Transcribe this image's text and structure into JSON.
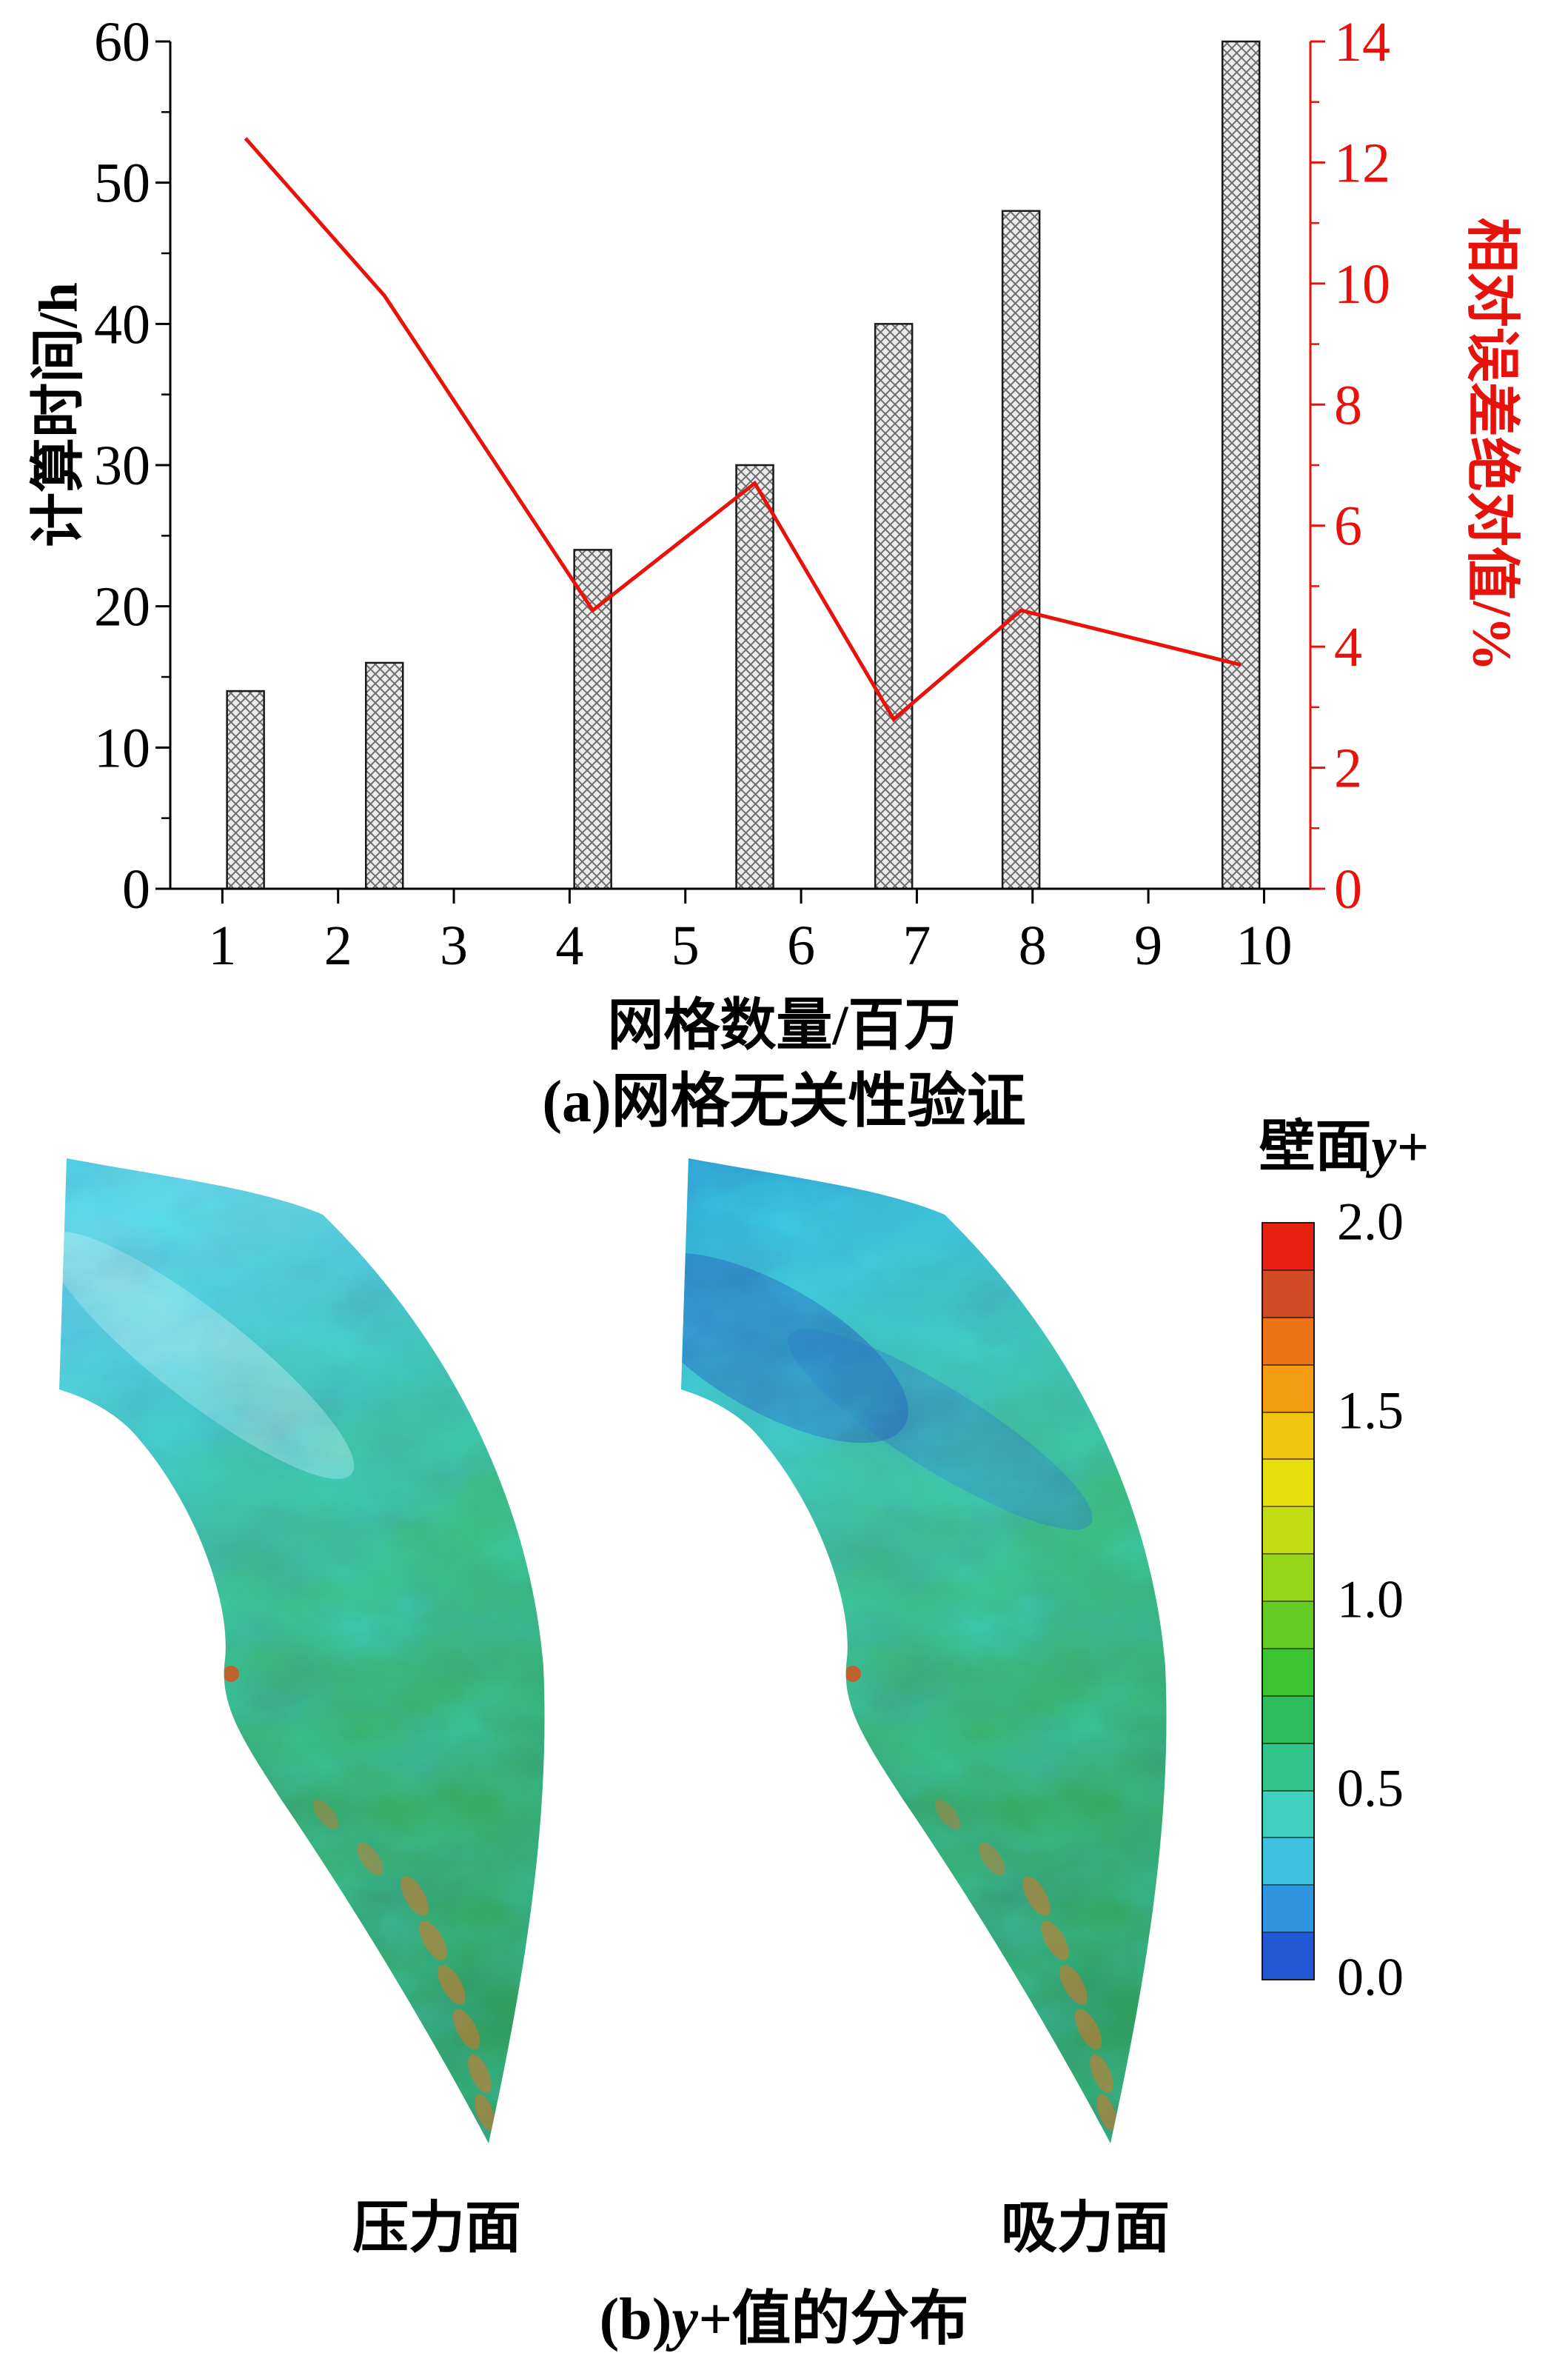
{
  "page": {
    "background": "#ffffff",
    "accent_red": "#e8120c"
  },
  "panel_a": {
    "caption": "(a)网格无关性验证",
    "xlabel": "网格数量/百万",
    "ylabel_left": "计算时间/h",
    "ylabel_right": "相对误差绝对值/%"
  },
  "panel_b": {
    "caption_prefix": "(b)",
    "caption_var": "y+",
    "caption_suffix": "值的分布",
    "legend_title_cjk": "壁面",
    "legend_title_var": "y+",
    "pressure_label": "压力面",
    "suction_label": "吸力面",
    "colorbar": {
      "ticks": [
        "2.0",
        "1.5",
        "1.0",
        "0.5",
        "0.0"
      ],
      "colors": [
        "#e8200f",
        "#d14a24",
        "#ec7417",
        "#f39c12",
        "#efc50f",
        "#e8e00c",
        "#c2dd13",
        "#95d61b",
        "#62cc24",
        "#3ac432",
        "#2fbd5c",
        "#32c48d",
        "#3fd0c0",
        "#3dc3e0",
        "#2f94e0",
        "#2257d6"
      ]
    }
  },
  "chart_data": [
    {
      "type": "bar",
      "title": "(a)网格无关性验证",
      "xlabel": "网格数量/百万",
      "ylabel": "计算时间/h",
      "x": [
        1.2,
        2.4,
        4.2,
        5.6,
        6.8,
        7.9,
        9.8
      ],
      "values": [
        14,
        16,
        24,
        30,
        40,
        48,
        60
      ],
      "xlim": [
        0.55,
        10.4
      ],
      "ylim": [
        0,
        60
      ],
      "xticks": [
        1,
        2,
        3,
        4,
        5,
        6,
        7,
        8,
        9,
        10
      ],
      "yticks": [
        0,
        10,
        20,
        30,
        40,
        50,
        60
      ],
      "bar_style": "gray-crosshatch",
      "axis_color": "#000000",
      "legend_position": "none",
      "grid": false
    },
    {
      "type": "line",
      "ylabel": "相对误差绝对值/%",
      "y_axis": "right",
      "x": [
        1.2,
        2.4,
        4.2,
        5.6,
        6.8,
        7.9,
        9.8
      ],
      "values": [
        12.4,
        9.8,
        4.6,
        6.7,
        2.8,
        4.6,
        3.7
      ],
      "ylim": [
        0,
        14
      ],
      "yticks": [
        0,
        2,
        4,
        6,
        8,
        10,
        12,
        14
      ],
      "color": "#e8120c"
    }
  ]
}
